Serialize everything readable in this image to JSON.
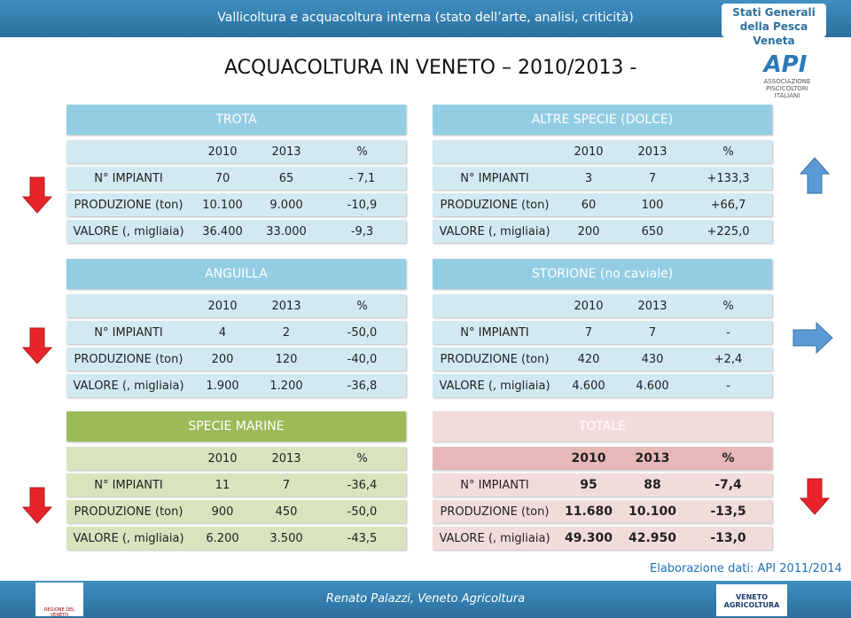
{
  "header": {
    "title": "Vallicoltura e acquacoltura interna (stato dell’arte, analisi, criticità)",
    "logo_line1": "Stati Generali",
    "logo_line2": "della Pesca Veneta",
    "api_logo": "API",
    "api_caption": "ASSOCIAZIONE PISCICOLTORI ITALIANI"
  },
  "main_title": "ACQUACOLTURA IN VENETO – 2010/2013 -",
  "tables": [
    {
      "title": "TROTA",
      "columns": [
        "2010",
        "2013",
        "%"
      ],
      "rows": [
        {
          "label": "N° IMPIANTI",
          "cells": [
            "70",
            "65",
            "- 7,1"
          ]
        },
        {
          "label": "PRODUZIONE (ton)",
          "cells": [
            "10.100",
            "9.000",
            "-10,9"
          ]
        },
        {
          "label": "VALORE (, migliaia)",
          "cells": [
            "36.400",
            "33.000",
            "-9,3"
          ]
        }
      ]
    },
    {
      "title": "ALTRE SPECIE (DOLCE)",
      "columns": [
        "2010",
        "2013",
        "%"
      ],
      "rows": [
        {
          "label": "N° IMPIANTI",
          "cells": [
            "3",
            "7",
            "+133,3"
          ]
        },
        {
          "label": "PRODUZIONE (ton)",
          "cells": [
            "60",
            "100",
            "+66,7"
          ]
        },
        {
          "label": "VALORE (, migliaia)",
          "cells": [
            "200",
            "650",
            "+225,0"
          ]
        }
      ]
    },
    {
      "title": "ANGUILLA",
      "columns": [
        "2010",
        "2013",
        "%"
      ],
      "rows": [
        {
          "label": "N° IMPIANTI",
          "cells": [
            "4",
            "2",
            "-50,0"
          ]
        },
        {
          "label": "PRODUZIONE (ton)",
          "cells": [
            "200",
            "120",
            "-40,0"
          ]
        },
        {
          "label": "VALORE (, migliaia)",
          "cells": [
            "1.900",
            "1.200",
            "-36,8"
          ]
        }
      ]
    },
    {
      "title": "STORIONE (no caviale)",
      "columns": [
        "2010",
        "2013",
        "%"
      ],
      "rows": [
        {
          "label": "N° IMPIANTI",
          "cells": [
            "7",
            "7",
            "-"
          ]
        },
        {
          "label": "PRODUZIONE (ton)",
          "cells": [
            "420",
            "430",
            "+2,4"
          ]
        },
        {
          "label": "VALORE (, migliaia)",
          "cells": [
            "4.600",
            "4.600",
            "-"
          ]
        }
      ]
    },
    {
      "title": "SPECIE MARINE",
      "columns": [
        "2010",
        "2013",
        "%"
      ],
      "rows": [
        {
          "label": "N° IMPIANTI",
          "cells": [
            "11",
            "7",
            "-36,4"
          ]
        },
        {
          "label": "PRODUZIONE (ton)",
          "cells": [
            "900",
            "450",
            "-50,0"
          ]
        },
        {
          "label": "VALORE (, migliaia)",
          "cells": [
            "6.200",
            "3.500",
            "-43,5"
          ]
        }
      ]
    },
    {
      "title": "TOTALE",
      "columns": [
        "2010",
        "2013",
        "%"
      ],
      "rows": [
        {
          "label": "N° IMPIANTI",
          "cells": [
            "95",
            "88",
            "-7,4"
          ]
        },
        {
          "label": "PRODUZIONE (ton)",
          "cells": [
            "11.680",
            "10.100",
            "-13,5"
          ]
        },
        {
          "label": "VALORE (, migliaia)",
          "cells": [
            "49.300",
            "42.950",
            "-13,0"
          ]
        }
      ]
    }
  ],
  "footer": {
    "source": "Elaborazione dati: API 2011/2014",
    "author": "Renato Palazzi, Veneto Agricoltura",
    "left_logo": "REGIONE DEL VENETO",
    "right_logo": "VENETO AGRICOLTURA"
  }
}
